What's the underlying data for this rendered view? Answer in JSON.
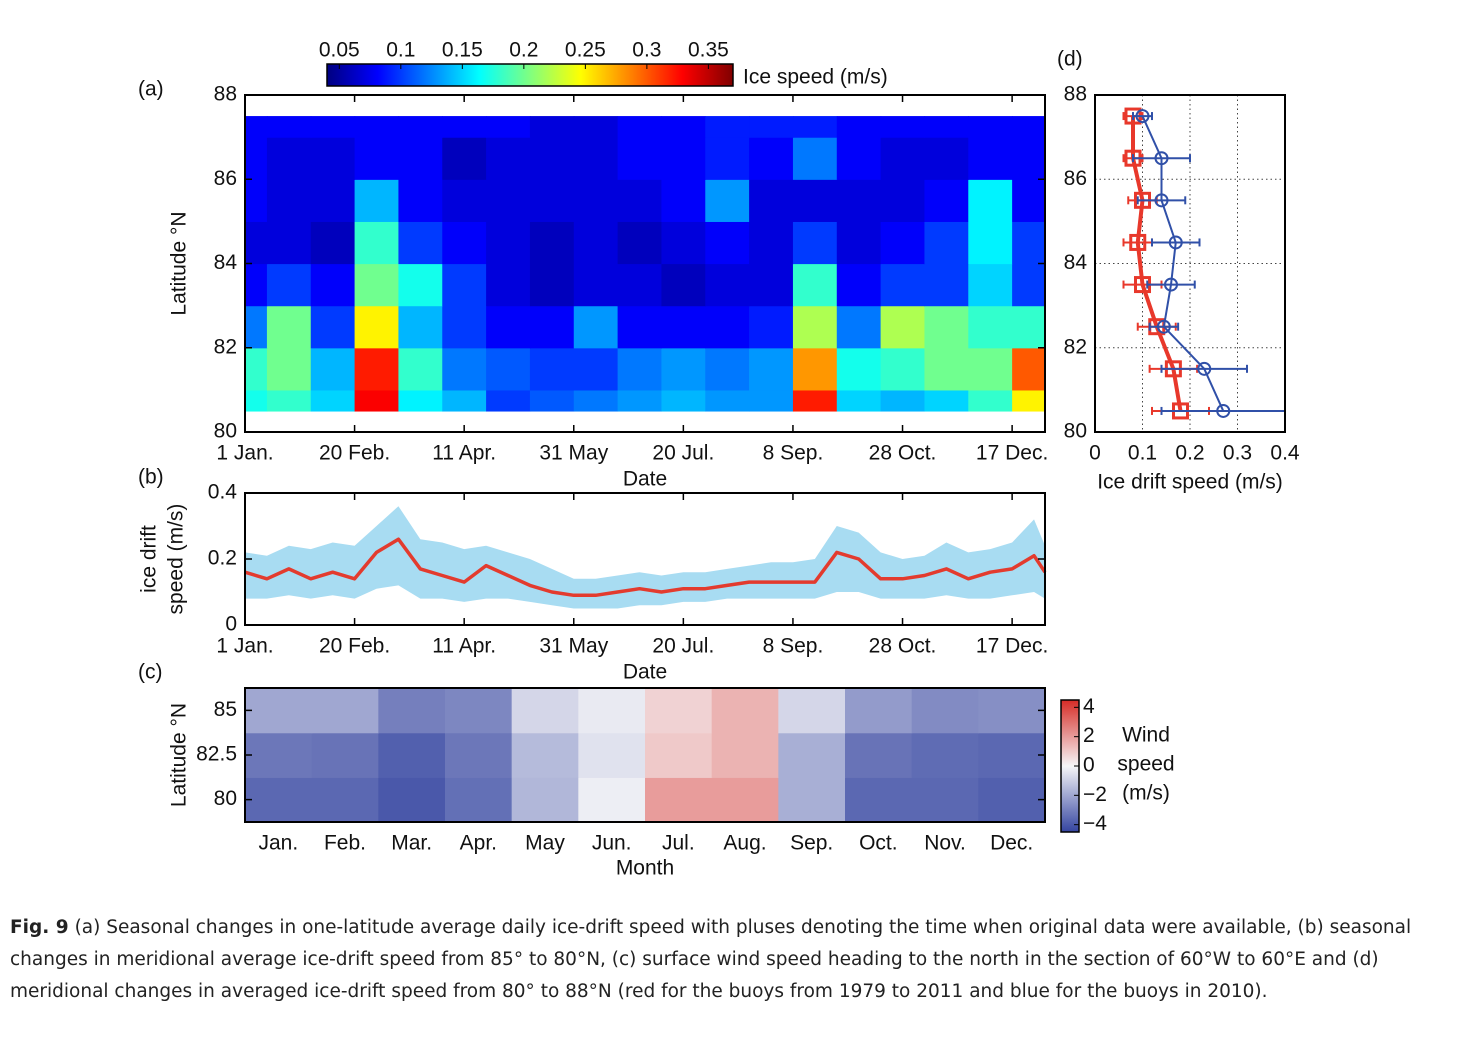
{
  "chart_data": [
    {
      "type": "heatmap",
      "panel": "(a)",
      "ylabel": "Latitude °N",
      "xlabel": "Date",
      "x": [
        1,
        21,
        41,
        61,
        81,
        101,
        121,
        141,
        161,
        181,
        201,
        221,
        241,
        261,
        281,
        301,
        321,
        341,
        361
      ],
      "y": [
        80.5,
        81.5,
        82.5,
        83.5,
        84.5,
        85.5,
        86.5,
        87.5
      ],
      "values": [
        [
          0.17,
          0.18,
          0.15,
          0.33,
          0.16,
          0.14,
          0.1,
          0.11,
          0.12,
          0.13,
          0.14,
          0.13,
          0.13,
          0.32,
          0.15,
          0.14,
          0.15,
          0.18,
          0.25
        ],
        [
          0.18,
          0.2,
          0.14,
          0.32,
          0.18,
          0.12,
          0.11,
          0.1,
          0.1,
          0.12,
          0.13,
          0.12,
          0.13,
          0.28,
          0.17,
          0.18,
          0.2,
          0.2,
          0.3
        ],
        [
          0.12,
          0.2,
          0.1,
          0.25,
          0.14,
          0.1,
          0.08,
          0.08,
          0.13,
          0.08,
          0.08,
          0.08,
          0.09,
          0.22,
          0.12,
          0.22,
          0.2,
          0.18,
          0.18
        ],
        [
          0.08,
          0.1,
          0.08,
          0.2,
          0.17,
          0.1,
          0.07,
          0.06,
          0.07,
          0.07,
          0.06,
          0.07,
          0.07,
          0.18,
          0.08,
          0.1,
          0.1,
          0.15,
          0.1
        ],
        [
          0.07,
          0.07,
          0.06,
          0.18,
          0.1,
          0.08,
          0.07,
          0.06,
          0.07,
          0.06,
          0.07,
          0.08,
          0.07,
          0.1,
          0.07,
          0.08,
          0.1,
          0.16,
          0.1
        ],
        [
          0.08,
          0.07,
          0.07,
          0.14,
          0.08,
          0.07,
          0.07,
          0.07,
          0.07,
          0.07,
          0.08,
          0.13,
          0.07,
          0.07,
          0.07,
          0.07,
          0.08,
          0.16,
          0.08
        ],
        [
          0.08,
          0.07,
          0.07,
          0.08,
          0.08,
          0.06,
          0.07,
          0.07,
          0.07,
          0.08,
          0.08,
          0.09,
          0.08,
          0.12,
          0.08,
          0.07,
          0.07,
          0.08,
          0.08
        ],
        [
          0.08,
          0.08,
          0.08,
          0.08,
          0.08,
          0.08,
          0.08,
          0.07,
          0.07,
          0.08,
          0.08,
          0.09,
          0.09,
          0.09,
          0.08,
          0.08,
          0.08,
          0.08,
          0.08
        ]
      ],
      "xlim": [
        1,
        366
      ],
      "ylim": [
        80,
        88
      ],
      "xticks": [
        {
          "value": 1,
          "label": "1 Jan."
        },
        {
          "value": 51,
          "label": "20 Feb."
        },
        {
          "value": 101,
          "label": "11 Apr."
        },
        {
          "value": 151,
          "label": "31 May"
        },
        {
          "value": 201,
          "label": "20 Jul."
        },
        {
          "value": 251,
          "label": "8 Sep."
        },
        {
          "value": 301,
          "label": "28 Oct."
        },
        {
          "value": 351,
          "label": "17 Dec."
        }
      ],
      "yticks": [
        80,
        82,
        84,
        86,
        88
      ],
      "colorbar": {
        "label": "Ice speed (m/s)",
        "lim": [
          0.04,
          0.37
        ],
        "ticks": [
          0.05,
          0.1,
          0.15,
          0.2,
          0.25,
          0.3,
          0.35
        ],
        "colormap": "jet"
      }
    },
    {
      "type": "line",
      "panel": "(b)",
      "ylabel": [
        "ice drift",
        "speed (m/s)"
      ],
      "xlabel": "Date",
      "x": [
        1,
        11,
        21,
        31,
        41,
        51,
        61,
        71,
        81,
        91,
        101,
        111,
        121,
        131,
        141,
        151,
        161,
        171,
        181,
        191,
        201,
        211,
        221,
        231,
        241,
        251,
        261,
        271,
        281,
        291,
        301,
        311,
        321,
        331,
        341,
        351,
        361,
        366
      ],
      "series": [
        {
          "color": "#e33b2e",
          "values": [
            0.16,
            0.14,
            0.17,
            0.14,
            0.16,
            0.14,
            0.22,
            0.26,
            0.17,
            0.15,
            0.13,
            0.18,
            0.15,
            0.12,
            0.1,
            0.09,
            0.09,
            0.1,
            0.11,
            0.1,
            0.11,
            0.11,
            0.12,
            0.13,
            0.13,
            0.13,
            0.13,
            0.22,
            0.2,
            0.14,
            0.14,
            0.15,
            0.17,
            0.14,
            0.16,
            0.17,
            0.21,
            0.16
          ]
        }
      ],
      "band": {
        "color": "#a8dcf2",
        "upper": [
          0.22,
          0.21,
          0.24,
          0.23,
          0.25,
          0.24,
          0.3,
          0.36,
          0.26,
          0.25,
          0.23,
          0.24,
          0.22,
          0.2,
          0.17,
          0.14,
          0.14,
          0.15,
          0.16,
          0.15,
          0.16,
          0.16,
          0.17,
          0.18,
          0.19,
          0.19,
          0.2,
          0.3,
          0.28,
          0.22,
          0.2,
          0.21,
          0.25,
          0.22,
          0.23,
          0.25,
          0.32,
          0.24
        ],
        "lower": [
          0.08,
          0.08,
          0.09,
          0.08,
          0.09,
          0.08,
          0.11,
          0.12,
          0.08,
          0.08,
          0.07,
          0.08,
          0.08,
          0.07,
          0.06,
          0.05,
          0.05,
          0.05,
          0.06,
          0.06,
          0.07,
          0.07,
          0.08,
          0.08,
          0.08,
          0.08,
          0.08,
          0.1,
          0.1,
          0.08,
          0.08,
          0.08,
          0.09,
          0.08,
          0.08,
          0.09,
          0.1,
          0.08
        ]
      },
      "xlim": [
        1,
        366
      ],
      "ylim": [
        0,
        0.4
      ],
      "xticks": [
        {
          "value": 1,
          "label": "1 Jan."
        },
        {
          "value": 51,
          "label": "20 Feb."
        },
        {
          "value": 101,
          "label": "11 Apr."
        },
        {
          "value": 151,
          "label": "31 May"
        },
        {
          "value": 201,
          "label": "20 Jul."
        },
        {
          "value": 251,
          "label": "8 Sep."
        },
        {
          "value": 301,
          "label": "28 Oct."
        },
        {
          "value": 351,
          "label": "17 Dec."
        }
      ],
      "yticks": [
        0,
        0.2,
        0.4
      ]
    },
    {
      "type": "heatmap",
      "panel": "(c)",
      "ylabel": "Latitude °N",
      "xlabel": "Month",
      "categories": [
        "Jan.",
        "Feb.",
        "Mar.",
        "Apr.",
        "May",
        "Jun.",
        "Jul.",
        "Aug.",
        "Sep.",
        "Oct.",
        "Nov.",
        "Dec."
      ],
      "y": [
        80,
        82.5,
        85
      ],
      "values": [
        [
          -3.6,
          -3.6,
          -4,
          -3.4,
          -1.6,
          -0.2,
          2,
          2,
          -1.8,
          -3.6,
          -3.6,
          -3.8
        ],
        [
          -3.2,
          -3.3,
          -3.8,
          -3.2,
          -1.5,
          -0.5,
          1.0,
          1.5,
          -1.8,
          -3.3,
          -3.5,
          -3.6
        ],
        [
          -2,
          -2,
          -3,
          -2.8,
          -0.8,
          -0.3,
          0.8,
          1.5,
          -0.8,
          -2.3,
          -2.7,
          -2.6
        ]
      ],
      "ylim": [
        78.75,
        86.25
      ],
      "yticks": [
        80,
        82.5,
        85
      ],
      "colorbar": {
        "label": [
          "Wind",
          "speed",
          "(m/s)"
        ],
        "lim": [
          -4.5,
          4.5
        ],
        "ticks": [
          4,
          2,
          0,
          {
            "value": -2,
            "label": "−2"
          },
          {
            "value": -4,
            "label": "−4"
          }
        ],
        "colormap": "bwr"
      }
    },
    {
      "type": "errorline",
      "panel": "(d)",
      "xlabel": "Ice drift speed (m/s)",
      "y": [
        80.5,
        81.5,
        82.5,
        83.5,
        84.5,
        85.5,
        86.5,
        87.5
      ],
      "series": [
        {
          "color": "#e8382b",
          "marker": "square",
          "values": [
            0.18,
            0.165,
            0.13,
            0.1,
            0.09,
            0.1,
            0.08,
            0.08
          ],
          "errors": [
            0.06,
            0.05,
            0.04,
            0.04,
            0.03,
            0.03,
            0.02,
            0.02
          ]
        },
        {
          "color": "#3050a8",
          "marker": "circle",
          "values": [
            0.27,
            0.23,
            0.145,
            0.16,
            0.17,
            0.14,
            0.14,
            0.1
          ],
          "errors": [
            0.13,
            0.09,
            0.03,
            0.05,
            0.05,
            0.05,
            0.06,
            0.02
          ]
        }
      ],
      "xlim": [
        0,
        0.4
      ],
      "ylim": [
        80,
        88
      ],
      "xticks": [
        0,
        0.1,
        0.2,
        0.3,
        0.4
      ],
      "yticks": [
        80,
        82,
        84,
        86,
        88
      ],
      "grid": true
    }
  ],
  "caption": {
    "label": "Fig. 9",
    "text": "(a) Seasonal changes in one-latitude average daily ice-drift speed with pluses denoting the time when original data were available, (b) seasonal changes in meridional average ice-drift speed from 85° to 80°N, (c) surface wind speed heading to the north in the section of 60°W to 60°E and (d) meridional changes in averaged ice-drift speed from 80° to 88°N (red for the buoys from 1979 to 2011 and blue for the buoys in 2010)."
  }
}
